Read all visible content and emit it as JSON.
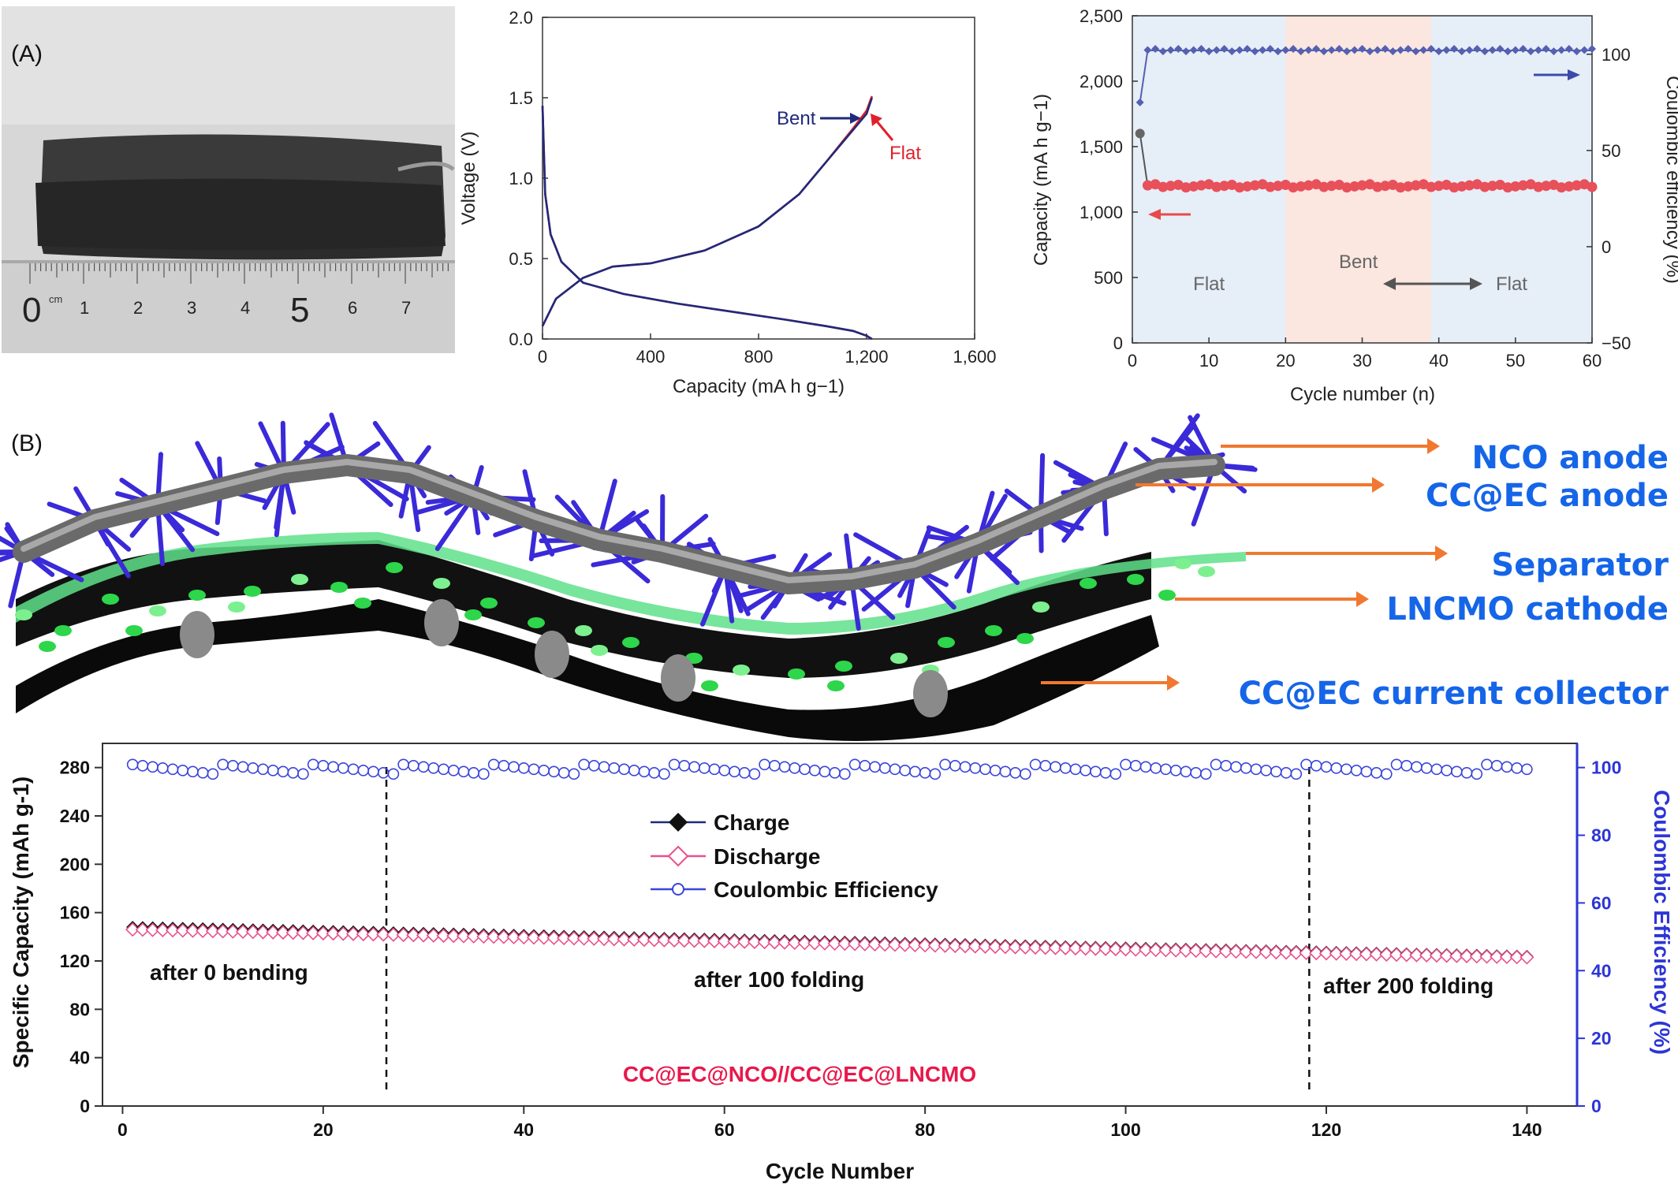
{
  "panels": {
    "a": "(A)",
    "b": "(B)"
  },
  "photo": {
    "ruler_unit": "cm",
    "ruler_labels": [
      "0",
      "1",
      "2",
      "3",
      "4",
      "5",
      "6",
      "7"
    ]
  },
  "schematic_labels": [
    "NCO anode",
    "CC@EC anode",
    "Separator",
    "LNCMO cathode",
    "CC@EC current collector"
  ],
  "colors": {
    "navy": "#1f2a7a",
    "red": "#e0202a",
    "purple": "#5560b0",
    "pink": "#e85a8a",
    "blue_axis": "#2d35d6",
    "title_red": "#e8184a",
    "schematic_text": "#1565e8"
  },
  "chart_data": [
    {
      "type": "line",
      "xlabel": "Capacity (mA h g−1)",
      "ylabel": "Voltage (V)",
      "xlim": [
        0,
        1600
      ],
      "ylim": [
        0,
        2.0
      ],
      "xticks": [
        "0",
        "400",
        "800",
        "1,200",
        "1,600"
      ],
      "yticks": [
        "0.0",
        "0.5",
        "1.0",
        "1.5",
        "2.0"
      ],
      "annotations": [
        "Bent",
        "Flat"
      ],
      "series": [
        {
          "name": "Bent",
          "color": "#1f2a7a",
          "charge": [
            [
              0,
              0.08
            ],
            [
              50,
              0.25
            ],
            [
              150,
              0.38
            ],
            [
              260,
              0.45
            ],
            [
              400,
              0.47
            ],
            [
              600,
              0.55
            ],
            [
              800,
              0.7
            ],
            [
              950,
              0.9
            ],
            [
              1050,
              1.1
            ],
            [
              1150,
              1.3
            ],
            [
              1200,
              1.4
            ],
            [
              1220,
              1.5
            ]
          ],
          "discharge": [
            [
              0,
              1.45
            ],
            [
              10,
              0.9
            ],
            [
              30,
              0.65
            ],
            [
              70,
              0.48
            ],
            [
              150,
              0.35
            ],
            [
              300,
              0.28
            ],
            [
              500,
              0.22
            ],
            [
              700,
              0.17
            ],
            [
              900,
              0.12
            ],
            [
              1050,
              0.08
            ],
            [
              1150,
              0.05
            ],
            [
              1200,
              0.02
            ],
            [
              1220,
              0.0
            ]
          ]
        },
        {
          "name": "Flat",
          "color": "#e0202a",
          "charge": [
            [
              0,
              0.08
            ],
            [
              50,
              0.25
            ],
            [
              150,
              0.38
            ],
            [
              260,
              0.45
            ],
            [
              400,
              0.47
            ],
            [
              600,
              0.55
            ],
            [
              800,
              0.7
            ],
            [
              950,
              0.9
            ],
            [
              1050,
              1.1
            ],
            [
              1150,
              1.31
            ],
            [
              1200,
              1.42
            ],
            [
              1220,
              1.51
            ]
          ],
          "discharge": [
            [
              0,
              1.45
            ],
            [
              10,
              0.9
            ],
            [
              30,
              0.65
            ],
            [
              70,
              0.48
            ],
            [
              150,
              0.35
            ],
            [
              300,
              0.28
            ],
            [
              500,
              0.22
            ],
            [
              700,
              0.17
            ],
            [
              900,
              0.12
            ],
            [
              1050,
              0.08
            ],
            [
              1150,
              0.05
            ],
            [
              1200,
              0.02
            ],
            [
              1220,
              0.0
            ]
          ]
        }
      ]
    },
    {
      "type": "scatter",
      "xlabel": "Cycle number (n)",
      "ylabel": "Capacity (mA h g−1)",
      "y2label": "Coulombic efficiency (%)",
      "xlim": [
        0,
        60
      ],
      "ylim": [
        0,
        2500
      ],
      "y2lim": [
        -50,
        120
      ],
      "xticks": [
        "0",
        "10",
        "20",
        "30",
        "40",
        "50",
        "60"
      ],
      "yticks": [
        "0",
        "500",
        "1,000",
        "1,500",
        "2,000",
        "2,500"
      ],
      "y2ticks": [
        "−50",
        "0",
        "50",
        "100"
      ],
      "regions": [
        {
          "label": "Flat",
          "from": 0,
          "to": 20,
          "color": "#e6eef8"
        },
        {
          "label": "Bent",
          "from": 20,
          "to": 39,
          "color": "#fbe6e0"
        },
        {
          "label": "Flat",
          "from": 39,
          "to": 60,
          "color": "#e6eef8"
        }
      ],
      "capacity": {
        "first": [
          1,
          1600
        ],
        "rest": 1200,
        "color": "#e8505a"
      },
      "efficiency": {
        "first": [
          1,
          75
        ],
        "rest": 102,
        "color": "#5560b0"
      }
    },
    {
      "type": "scatter",
      "xlabel": "Cycle Number",
      "ylabel": "Specific Capacity (mAh g-1)",
      "y2label": "Coulombic Efficiency (%)",
      "xlim": [
        -2,
        145
      ],
      "ylim": [
        0,
        300
      ],
      "y2lim": [
        0,
        107.14
      ],
      "xticks": [
        "0",
        "20",
        "40",
        "60",
        "80",
        "100",
        "120",
        "140"
      ],
      "yticks": [
        "0",
        "40",
        "80",
        "120",
        "160",
        "200",
        "240",
        "280"
      ],
      "y2ticks": [
        "0",
        "20",
        "40",
        "60",
        "80",
        "100"
      ],
      "legend": [
        "Charge",
        "Discharge",
        "Coulombic Efficiency"
      ],
      "annotations": [
        "after 0 bending",
        "after 100 folding",
        "after 200 folding"
      ],
      "title": "CC@EC@NCO//CC@EC@LNCMO",
      "dividers": [
        26.3,
        118.3
      ],
      "series": [
        {
          "name": "Charge",
          "start": [
            1,
            148
          ],
          "end": [
            140,
            124
          ]
        },
        {
          "name": "Discharge",
          "start": [
            1,
            146
          ],
          "end": [
            140,
            123
          ]
        },
        {
          "name": "Coulombic Efficiency",
          "value": 99.5
        }
      ]
    }
  ]
}
